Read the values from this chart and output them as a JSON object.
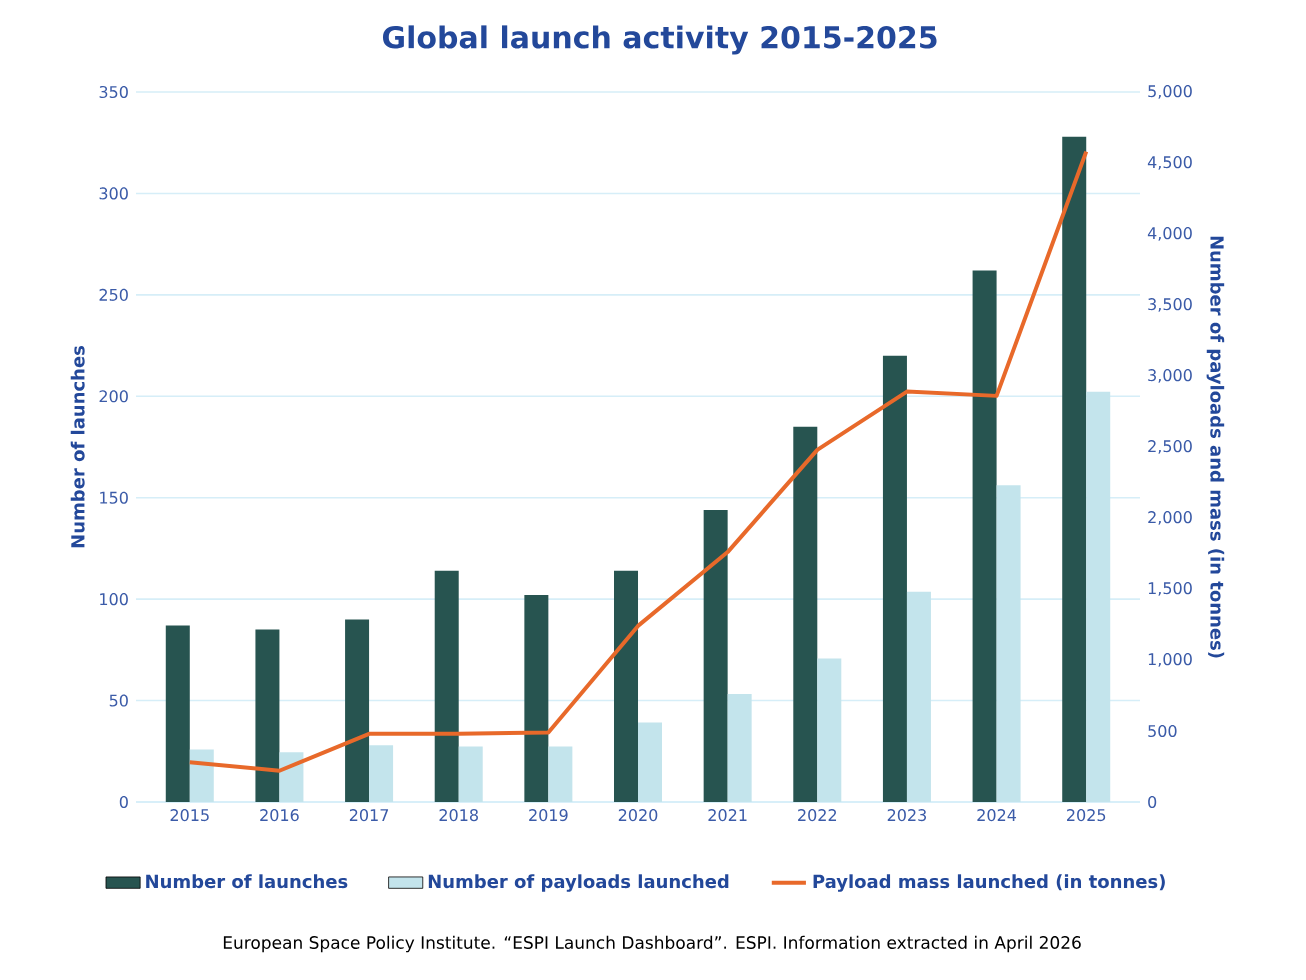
{
  "chart_data": {
    "type": "bar",
    "title": "Global launch activity 2015-2025",
    "ylabel": "Number of launches",
    "y2label": "Number of payloads and mass (in tonnes)",
    "categories": [
      "2015",
      "2016",
      "2017",
      "2018",
      "2019",
      "2020",
      "2021",
      "2022",
      "2023",
      "2024",
      "2025"
    ],
    "series": [
      {
        "name": "Number of launches",
        "color": "#275450",
        "values": [
          87,
          85,
          90,
          114,
          102,
          114,
          144,
          185,
          220,
          262,
          328
        ]
      },
      {
        "name": "Number of payloads launched",
        "color": "#c3e4ec",
        "axis": "y2",
        "values": [
          370,
          350,
          400,
          390,
          390,
          560,
          760,
          1010,
          1480,
          2230,
          2890
        ]
      },
      {
        "name": "Payload mass launched (in tonnes)",
        "color": "#e8692a",
        "type": "line",
        "axis": "y2",
        "values": [
          280,
          220,
          480,
          480,
          490,
          1240,
          1760,
          2480,
          2890,
          2860,
          4580
        ]
      }
    ],
    "ylim": [
      0,
      350
    ],
    "yticks": [
      0,
      50,
      100,
      150,
      200,
      250,
      300,
      350
    ],
    "y2lim": [
      0,
      5000
    ],
    "y2ticks": [
      0,
      500,
      {
        "value": 1000,
        "label": "1,000"
      },
      {
        "value": 1500,
        "label": "1,500"
      },
      {
        "value": 2000,
        "label": "2,000"
      },
      {
        "value": 2500,
        "label": "2,500"
      },
      {
        "value": 3000,
        "label": "3,000"
      },
      {
        "value": 3500,
        "label": "3,500"
      },
      {
        "value": 4000,
        "label": "4,000"
      },
      {
        "value": 4500,
        "label": "4,500"
      },
      {
        "value": 5000,
        "label": "5,000"
      }
    ],
    "grid": "y",
    "legend": "bottom",
    "annotations": [
      "European Space Policy Institute. “ESPI Launch Dashboard”. ESPI. Information extracted in April 2026"
    ]
  }
}
